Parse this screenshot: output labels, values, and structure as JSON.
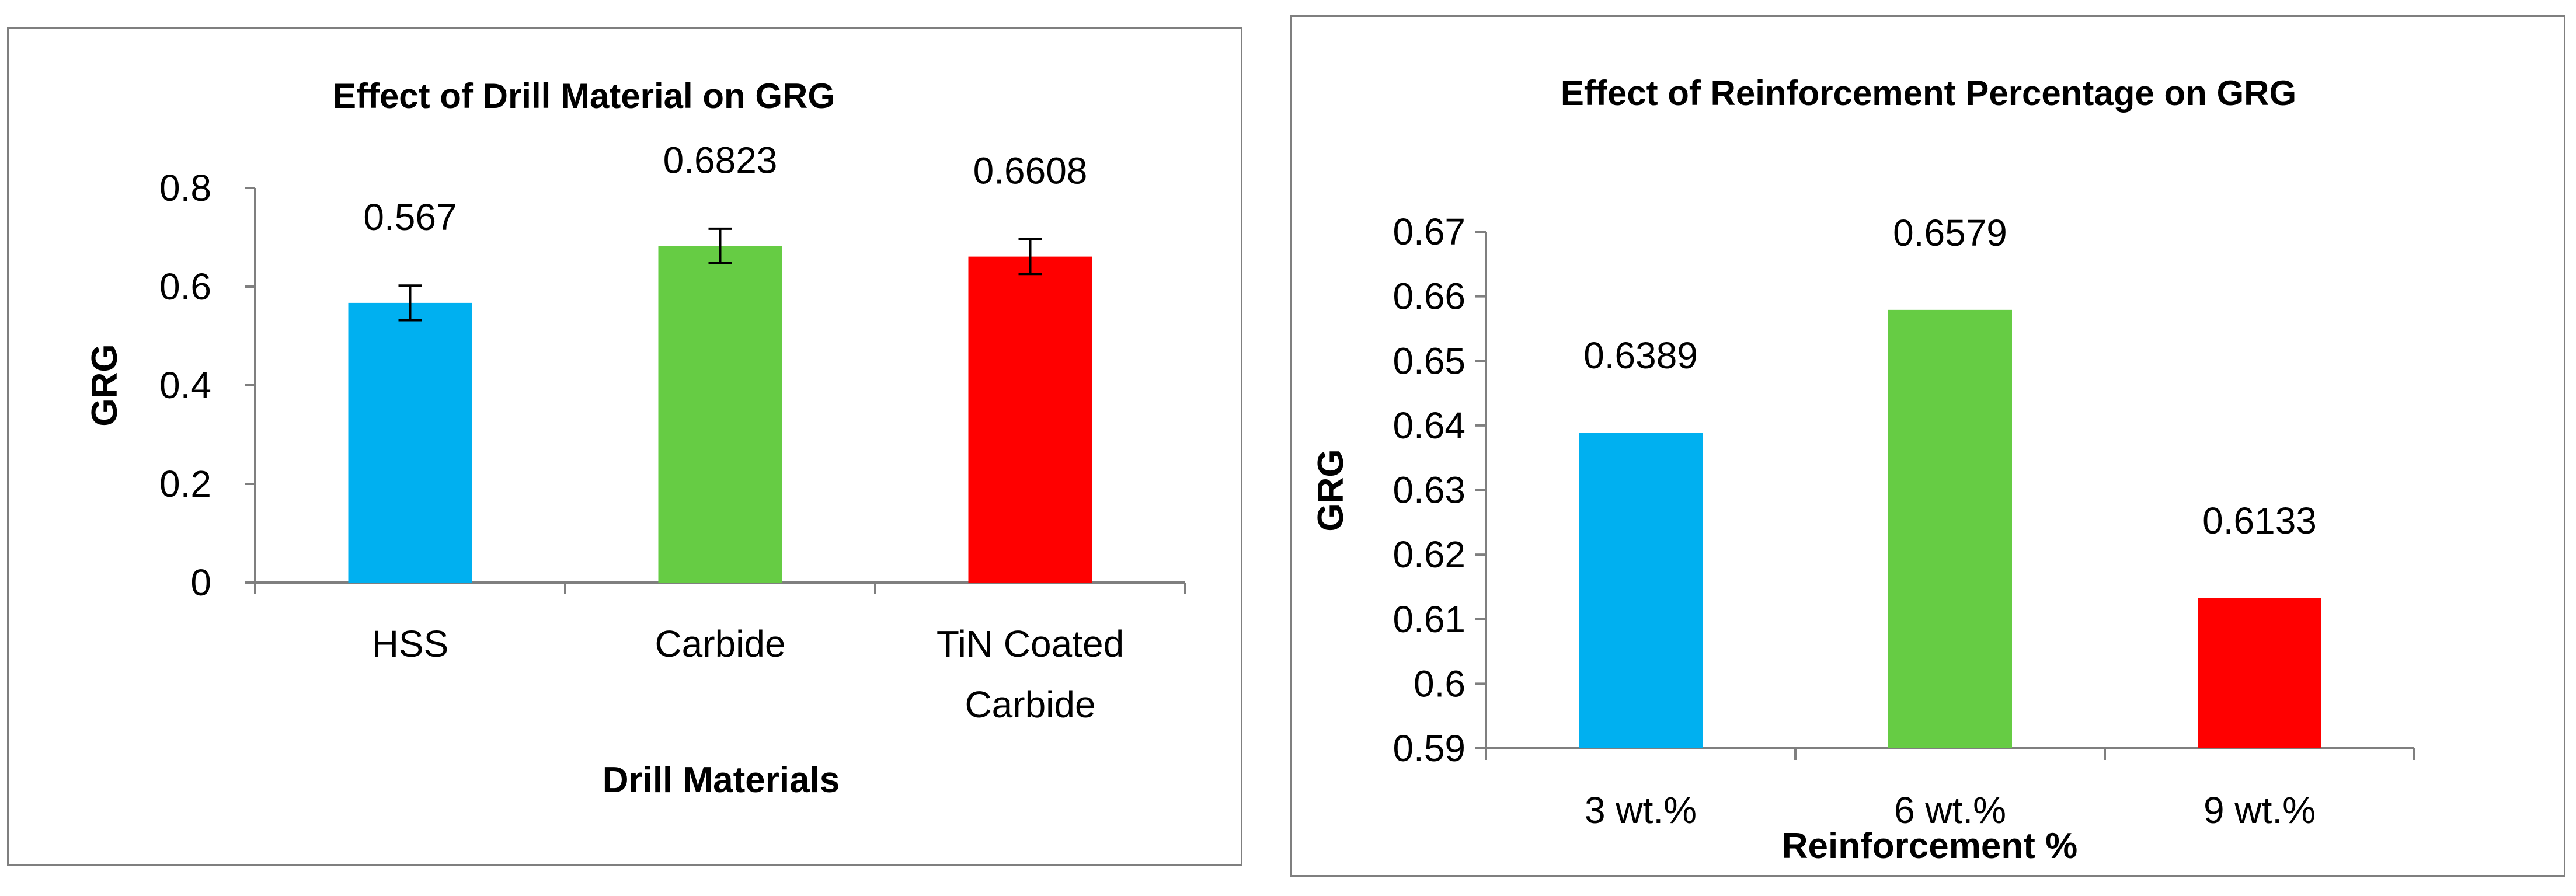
{
  "chart_data": [
    {
      "type": "bar",
      "title": "Effect of Drill Material on GRG",
      "xlabel": "Drill Materials",
      "ylabel": "GRG",
      "categories": [
        "HSS",
        "Carbide",
        "TiN Coated Carbide"
      ],
      "category_lines": [
        [
          "HSS"
        ],
        [
          "Carbide"
        ],
        [
          "TiN Coated",
          "Carbide"
        ]
      ],
      "values": [
        0.567,
        0.6823,
        0.6608
      ],
      "data_labels": [
        "0.567",
        "0.6823",
        "0.6608"
      ],
      "error_bars": [
        0.035,
        0.035,
        0.035
      ],
      "colors": [
        "#00b0f0",
        "#66cc44",
        "#ff0000"
      ],
      "ylim": [
        0,
        0.8
      ],
      "yticks": [
        0,
        0.2,
        0.4,
        0.6,
        0.8
      ],
      "ytick_labels": [
        "0",
        "0.2",
        "0.4",
        "0.6",
        "0.8"
      ],
      "grid": false,
      "legend": "none"
    },
    {
      "type": "bar",
      "title": "Effect of Reinforcement Percentage on GRG",
      "xlabel": "Reinforcement %",
      "ylabel": "GRG",
      "categories": [
        "3 wt.%",
        "6 wt.%",
        "9 wt.%"
      ],
      "category_lines": [
        [
          "3 wt.%"
        ],
        [
          "6 wt.%"
        ],
        [
          "9 wt.%"
        ]
      ],
      "values": [
        0.6389,
        0.6579,
        0.6133
      ],
      "data_labels": [
        "0.6389",
        "0.6579",
        "0.6133"
      ],
      "colors": [
        "#00b0f0",
        "#66cc44",
        "#ff0000"
      ],
      "ylim": [
        0.59,
        0.67
      ],
      "yticks": [
        0.59,
        0.6,
        0.61,
        0.62,
        0.63,
        0.64,
        0.65,
        0.66,
        0.67
      ],
      "ytick_labels": [
        "0.59",
        "0.6",
        "0.61",
        "0.62",
        "0.63",
        "0.64",
        "0.65",
        "0.66",
        "0.67"
      ],
      "grid": false,
      "legend": "none"
    }
  ]
}
